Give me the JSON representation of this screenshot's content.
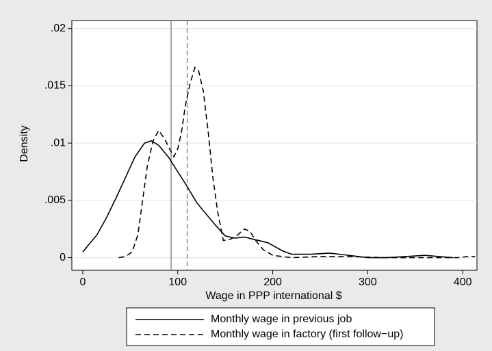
{
  "chart_data": {
    "type": "line",
    "x_label": "Wage in PPP international $",
    "y_label": "Density",
    "xlim": [
      -11.5,
      415
    ],
    "ylim": [
      -0.0011,
      0.0207
    ],
    "xticks": [
      0,
      100,
      200,
      300,
      400
    ],
    "yticks": [
      0,
      {
        "value": 0.005,
        "label": ".005"
      },
      {
        "value": 0.01,
        "label": ".01"
      },
      {
        "value": 0.015,
        "label": ".015"
      },
      {
        "value": 0.02,
        "label": ".02"
      }
    ],
    "grid": true,
    "legend": "bottom",
    "vlines": [
      {
        "value": 93,
        "color": "#888888",
        "dash": false
      },
      {
        "value": 110,
        "color": "#888888",
        "dash": true
      }
    ],
    "series": [
      {
        "name": "Monthly wage in previous job",
        "color": "#000000",
        "dash": false,
        "x": [
          0,
          5,
          15,
          25,
          35,
          45,
          55,
          65,
          72,
          80,
          90,
          100,
          110,
          120,
          130,
          140,
          150,
          160,
          170,
          180,
          195,
          210,
          220,
          240,
          260,
          280,
          300,
          320,
          340,
          360,
          375,
          390
        ],
        "values": [
          0.0005,
          0.001,
          0.002,
          0.0035,
          0.0052,
          0.007,
          0.0088,
          0.01,
          0.0102,
          0.0098,
          0.0088,
          0.0075,
          0.0062,
          0.0048,
          0.0038,
          0.0028,
          0.0019,
          0.0017,
          0.0018,
          0.0016,
          0.0013,
          0.0006,
          0.0003,
          0.0003,
          0.0004,
          0.0002,
          0,
          0,
          0.0001,
          0.0002,
          0.0001,
          0
        ]
      },
      {
        "name": "Monthly wage in factory (first follow−up)",
        "color": "#000000",
        "dash": true,
        "x": [
          38,
          45,
          52,
          58,
          63,
          68,
          74,
          80,
          86,
          92,
          96,
          100,
          104,
          108,
          113,
          118,
          122,
          127,
          132,
          137,
          142,
          148,
          155,
          162,
          170,
          176,
          182,
          190,
          200,
          220,
          250,
          280,
          320,
          380,
          395,
          405,
          413
        ],
        "values": [
          0,
          0.0001,
          0.0005,
          0.002,
          0.005,
          0.008,
          0.0102,
          0.0111,
          0.0104,
          0.0094,
          0.0088,
          0.0095,
          0.011,
          0.0133,
          0.0152,
          0.0166,
          0.0163,
          0.0145,
          0.011,
          0.007,
          0.004,
          0.0015,
          0.0016,
          0.0019,
          0.0025,
          0.0023,
          0.0015,
          0.0007,
          0.0002,
          0,
          0.0001,
          0.0001,
          0,
          0,
          0,
          0.0001,
          0.0001
        ]
      }
    ]
  }
}
